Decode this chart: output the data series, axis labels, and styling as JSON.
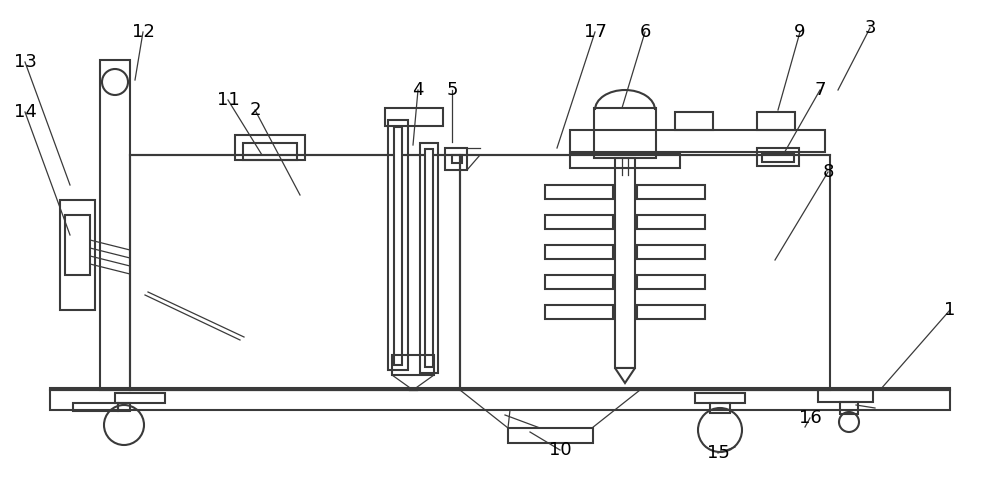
{
  "bg_color": "#ffffff",
  "line_color": "#3a3a3a",
  "lw": 1.5,
  "lw_thin": 0.9,
  "figsize": [
    10.0,
    4.93
  ],
  "dpi": 100,
  "labels_data": [
    [
      "1",
      950,
      310,
      880,
      390
    ],
    [
      "2",
      255,
      110,
      300,
      195
    ],
    [
      "3",
      870,
      28,
      838,
      90
    ],
    [
      "4",
      418,
      90,
      413,
      145
    ],
    [
      "5",
      452,
      90,
      452,
      142
    ],
    [
      "6",
      645,
      32,
      622,
      108
    ],
    [
      "7",
      820,
      90,
      783,
      155
    ],
    [
      "8",
      828,
      172,
      775,
      260
    ],
    [
      "9",
      800,
      32,
      778,
      110
    ],
    [
      "10",
      560,
      450,
      530,
      432
    ],
    [
      "11",
      228,
      100,
      262,
      155
    ],
    [
      "12",
      143,
      32,
      135,
      80
    ],
    [
      "13",
      25,
      62,
      70,
      185
    ],
    [
      "14",
      25,
      112,
      70,
      235
    ],
    [
      "15",
      718,
      453,
      735,
      447
    ],
    [
      "16",
      810,
      418,
      805,
      427
    ],
    [
      "17",
      595,
      32,
      557,
      148
    ]
  ]
}
